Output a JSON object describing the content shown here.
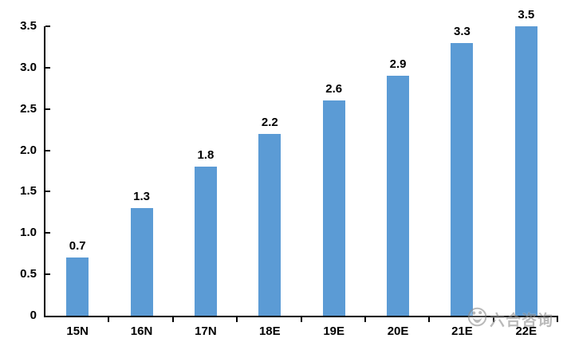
{
  "chart_data": {
    "type": "bar",
    "title": "",
    "xlabel": "",
    "ylabel": "",
    "categories": [
      "15N",
      "16N",
      "17N",
      "18E",
      "19E",
      "20E",
      "21E",
      "22E"
    ],
    "values": [
      0.7,
      1.3,
      1.8,
      2.2,
      2.6,
      2.9,
      3.3,
      3.5
    ],
    "data_labels": [
      "0.7",
      "1.3",
      "1.8",
      "2.2",
      "2.6",
      "2.9",
      "3.3",
      "3.5"
    ],
    "ylim": [
      0,
      3.5
    ],
    "y_ticks": [
      0,
      0.5,
      1.0,
      1.5,
      2.0,
      2.5,
      3.0,
      3.5
    ],
    "y_tick_labels": [
      "0",
      "0.5",
      "1.0",
      "1.5",
      "2.0",
      "2.5",
      "3.0",
      "3.5"
    ],
    "grid": false,
    "legend": false,
    "bar_color": "#5B9BD5",
    "axis_color": "#000000",
    "label_color": "#000000"
  },
  "watermark": {
    "text": "六合咨询",
    "logo": "panda-circle-logo",
    "color": "#8f8f8f"
  }
}
